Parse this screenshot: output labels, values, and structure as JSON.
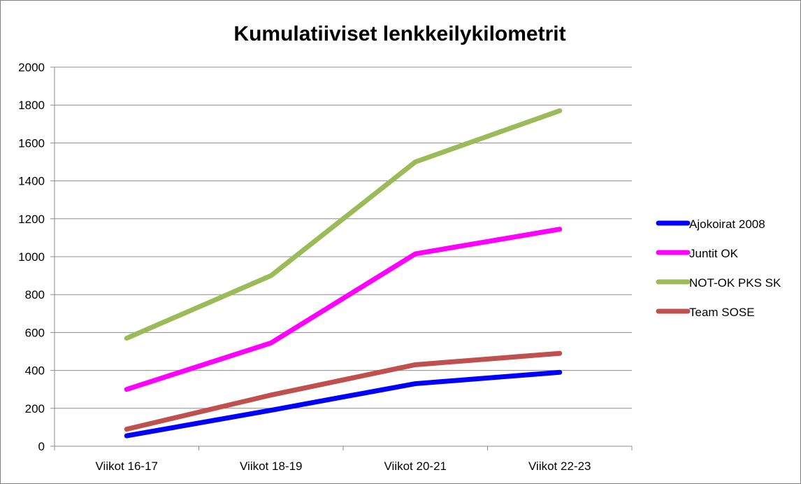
{
  "chart_data": {
    "type": "line",
    "title": "Kumulatiiviset lenkkeilykilometrit",
    "xlabel": "",
    "ylabel": "",
    "categories": [
      "Viikot 16-17",
      "Viikot 18-19",
      "Viikot 20-21",
      "Viikot 22-23"
    ],
    "ylim": [
      0,
      2000
    ],
    "yticks": [
      0,
      200,
      400,
      600,
      800,
      1000,
      1200,
      1400,
      1600,
      1800,
      2000
    ],
    "grid": true,
    "legend_position": "right",
    "series": [
      {
        "name": "Ajokoirat 2008",
        "color": "#0000ff",
        "values": [
          55,
          190,
          330,
          390
        ]
      },
      {
        "name": "Juntit OK",
        "color": "#ff00ff",
        "values": [
          300,
          545,
          1015,
          1145
        ]
      },
      {
        "name": "NOT-OK PKS SK",
        "color": "#9bbb59",
        "values": [
          570,
          900,
          1500,
          1770
        ]
      },
      {
        "name": "Team SOSE",
        "color": "#c0504d",
        "values": [
          90,
          270,
          430,
          490
        ]
      }
    ]
  }
}
